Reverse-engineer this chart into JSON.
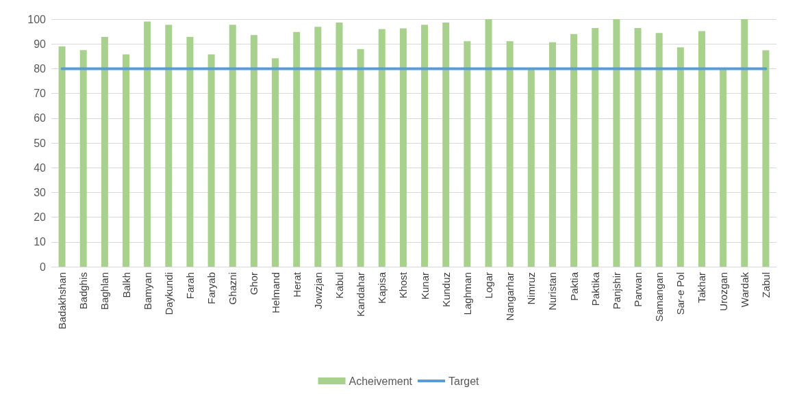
{
  "chart_data": {
    "type": "bar",
    "categories": [
      "Badakhshan",
      "Badghis",
      "Baghlan",
      "Balkh",
      "Bamyan",
      "Daykundi",
      "Farah",
      "Faryab",
      "Ghazni",
      "Ghor",
      "Helmand",
      "Herat",
      "Jowzjan",
      "Kabul",
      "Kandahar",
      "Kapisa",
      "Khost",
      "Kunar",
      "Kunduz",
      "Laghman",
      "Logar",
      "Nangarhar",
      "Nimruz",
      "Nuristan",
      "Paktia",
      "Paktika",
      "Panjshir",
      "Parwan",
      "Samangan",
      "Sar-e Pol",
      "Takhar",
      "Urozgan",
      "Wardak",
      "Zabul"
    ],
    "series": [
      {
        "name": "Acheivement",
        "color": "#a9d18e",
        "values": [
          89,
          87.5,
          92.8,
          85.8,
          99,
          97.7,
          92.8,
          85.8,
          97.7,
          93.6,
          84.2,
          94.8,
          96.9,
          98.6,
          87.9,
          96,
          96.3,
          97.7,
          98.6,
          91.1,
          100,
          91.1,
          80,
          90.7,
          94,
          96.4,
          100,
          96.4,
          94.4,
          88.6,
          95.2,
          80,
          100,
          87.4
        ]
      },
      {
        "name": "Target",
        "type": "line",
        "color": "#5b9bd5",
        "marker": "none",
        "values": [
          80,
          80,
          80,
          80,
          80,
          80,
          80,
          80,
          80,
          80,
          80,
          80,
          80,
          80,
          80,
          80,
          80,
          80,
          80,
          80,
          80,
          80,
          80,
          80,
          80,
          80,
          80,
          80,
          80,
          80,
          80,
          80,
          80,
          80
        ]
      }
    ],
    "ylim": [
      0,
      100
    ],
    "yticks": [
      0,
      10,
      20,
      30,
      40,
      50,
      60,
      70,
      80,
      90,
      100
    ],
    "grid": "y",
    "legend": "bottom"
  }
}
